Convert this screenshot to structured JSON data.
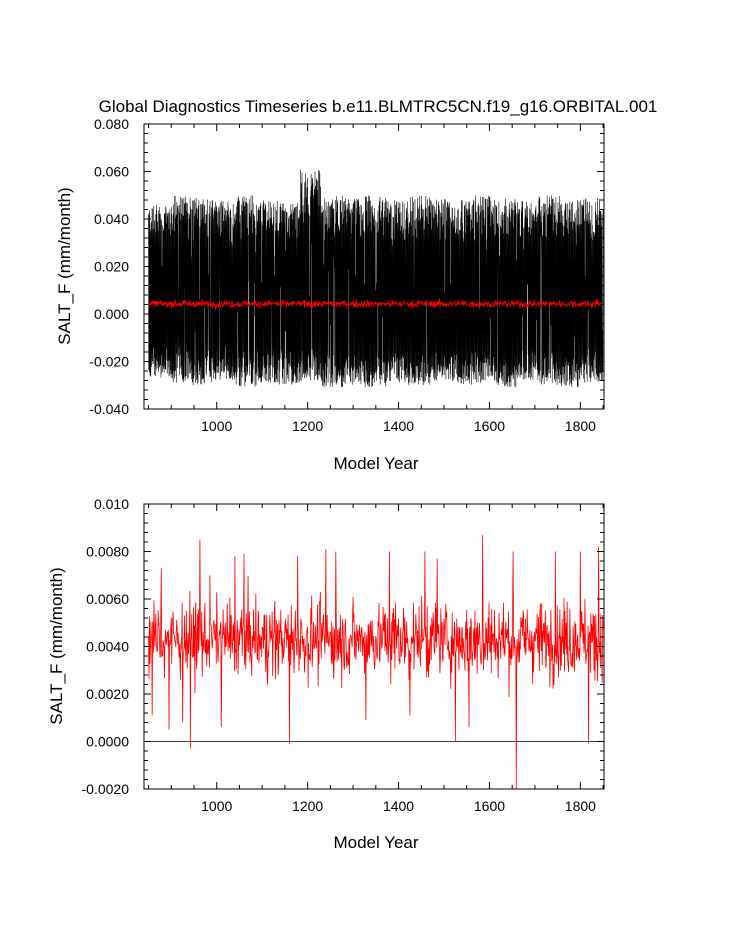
{
  "figure": {
    "title": "Global Diagnostics Timeseries b.e11.BLMTRC5CN.f19_g16.ORBITAL.001"
  },
  "chart_data": [
    {
      "type": "line",
      "xlabel": "Model Year",
      "ylabel": "SALT_F (mm/month)",
      "xlim": [
        840,
        1852
      ],
      "ylim": [
        -0.04,
        0.08
      ],
      "xticks": [
        1000,
        1200,
        1400,
        1600,
        1800
      ],
      "xtick_labels": [
        "1000",
        "1200",
        "1400",
        "1600",
        "1800"
      ],
      "yticks": [
        -0.04,
        -0.02,
        0.0,
        0.02,
        0.04,
        0.06,
        0.08
      ],
      "ytick_labels": [
        "-0.040",
        "-0.020",
        "0.000",
        "0.020",
        "0.040",
        "0.060",
        "0.080"
      ],
      "series": [
        {
          "color": "#000000",
          "description": "monthly values",
          "x_range": [
            850,
            1850
          ],
          "envelope_max": [
            0.046,
            0.05,
            0.049,
            0.048,
            0.05,
            0.048,
            0.047,
            0.061,
            0.05,
            0.049,
            0.05,
            0.048,
            0.05,
            0.049,
            0.048,
            0.05,
            0.049,
            0.048,
            0.05,
            0.048,
            0.049
          ],
          "envelope_min": [
            -0.027,
            -0.029,
            -0.03,
            -0.028,
            -0.031,
            -0.029,
            -0.03,
            -0.028,
            -0.031,
            -0.03,
            -0.031,
            -0.029,
            -0.03,
            -0.028,
            -0.03,
            -0.029,
            -0.031,
            -0.028,
            -0.03,
            -0.031,
            -0.029
          ],
          "mean": 0.0045
        },
        {
          "color": "#ff0000",
          "description": "annual mean",
          "x_range": [
            850,
            1850
          ],
          "mean": 0.0043,
          "range": [
            -0.002,
            0.0087
          ]
        }
      ]
    },
    {
      "type": "line",
      "xlabel": "Model Year",
      "ylabel": "SALT_F (mm/month)",
      "xlim": [
        840,
        1852
      ],
      "ylim": [
        -0.002,
        0.01
      ],
      "xticks": [
        1000,
        1200,
        1400,
        1600,
        1800
      ],
      "xtick_labels": [
        "1000",
        "1200",
        "1400",
        "1600",
        "1800"
      ],
      "yticks": [
        -0.002,
        0.0,
        0.002,
        0.004,
        0.006,
        0.008,
        0.01
      ],
      "ytick_labels": [
        "-0.0020",
        "0.0000",
        "0.0020",
        "0.0040",
        "0.0060",
        "0.0080",
        "0.010"
      ],
      "reference_line": 0.0,
      "series": [
        {
          "color": "#ff0000",
          "description": "annual mean",
          "x_range": [
            850,
            1850
          ],
          "mean": 0.0043,
          "std": 0.0011,
          "spikes": [
            {
              "x": 858,
              "y": 0.0011
            },
            {
              "x": 878,
              "y": 0.0073
            },
            {
              "x": 895,
              "y": 0.0005
            },
            {
              "x": 925,
              "y": 0.0008
            },
            {
              "x": 942,
              "y": -0.0003
            },
            {
              "x": 963,
              "y": 0.0085
            },
            {
              "x": 985,
              "y": 0.007
            },
            {
              "x": 1010,
              "y": 0.0006
            },
            {
              "x": 1040,
              "y": 0.0078
            },
            {
              "x": 1060,
              "y": 0.0079
            },
            {
              "x": 1160,
              "y": -0.0001
            },
            {
              "x": 1178,
              "y": 0.0078
            },
            {
              "x": 1240,
              "y": 0.0081
            },
            {
              "x": 1262,
              "y": 0.008
            },
            {
              "x": 1328,
              "y": 0.0009
            },
            {
              "x": 1380,
              "y": 0.008
            },
            {
              "x": 1425,
              "y": 0.0011
            },
            {
              "x": 1458,
              "y": 0.008
            },
            {
              "x": 1485,
              "y": 0.0077
            },
            {
              "x": 1525,
              "y": 0.0
            },
            {
              "x": 1555,
              "y": 0.0006
            },
            {
              "x": 1585,
              "y": 0.0087
            },
            {
              "x": 1652,
              "y": 0.008
            },
            {
              "x": 1659,
              "y": -0.002
            },
            {
              "x": 1745,
              "y": 0.008
            },
            {
              "x": 1800,
              "y": 0.008
            },
            {
              "x": 1818,
              "y": -0.0001
            },
            {
              "x": 1840,
              "y": 0.0082
            }
          ]
        }
      ]
    }
  ]
}
